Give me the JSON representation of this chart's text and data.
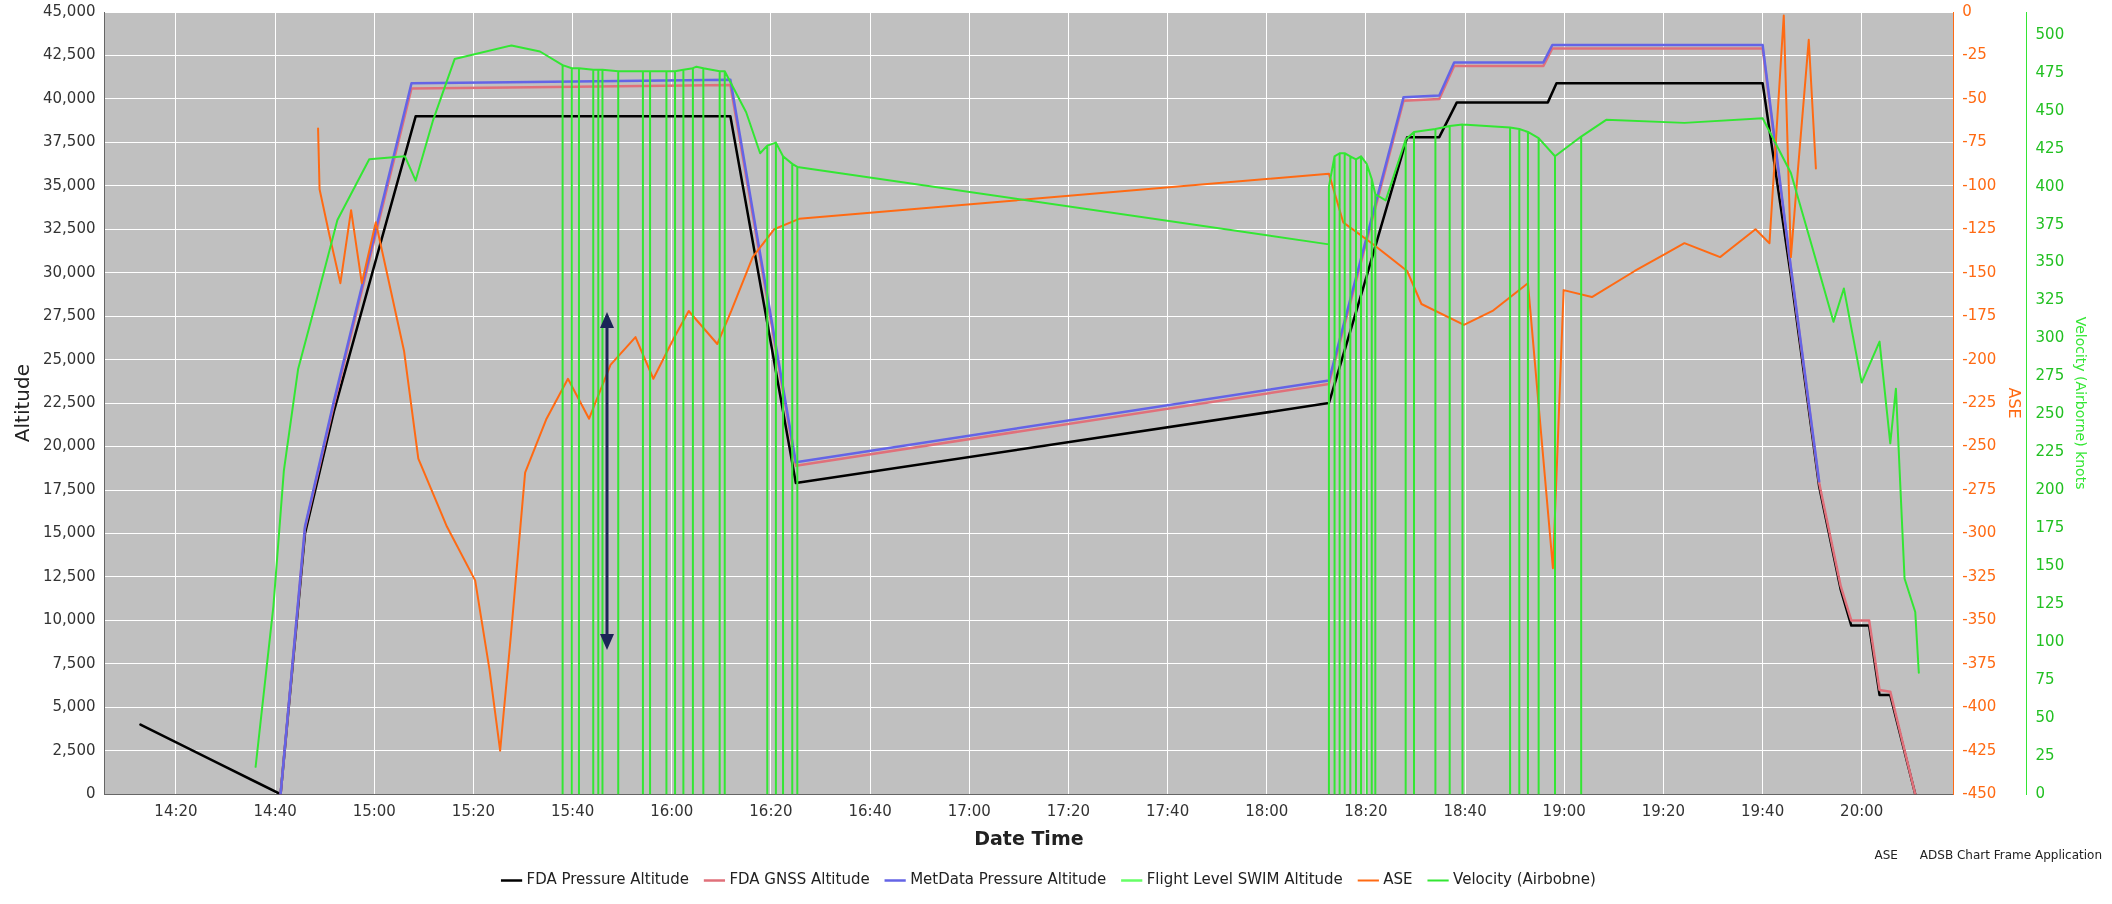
{
  "chart_data": {
    "type": "line",
    "xlabel": "Date Time",
    "ylabel": "Altitude",
    "y2label": "ASE",
    "y3label": "Velocity (Airborne) knots",
    "xlim": [
      14.093,
      20.308
    ],
    "xticks": [
      {
        "value": 14.3333,
        "label": "14:20"
      },
      {
        "value": 14.6667,
        "label": "14:40"
      },
      {
        "value": 15,
        "label": "15:00"
      },
      {
        "value": 15.3333,
        "label": "15:20"
      },
      {
        "value": 15.6667,
        "label": "15:40"
      },
      {
        "value": 16,
        "label": "16:00"
      },
      {
        "value": 16.3333,
        "label": "16:20"
      },
      {
        "value": 16.6667,
        "label": "16:40"
      },
      {
        "value": 17,
        "label": "17:00"
      },
      {
        "value": 17.3333,
        "label": "17:20"
      },
      {
        "value": 17.6667,
        "label": "17:40"
      },
      {
        "value": 18,
        "label": "18:00"
      },
      {
        "value": 18.3333,
        "label": "18:20"
      },
      {
        "value": 18.6667,
        "label": "18:40"
      },
      {
        "value": 19,
        "label": "19:00"
      },
      {
        "value": 19.3333,
        "label": "19:20"
      },
      {
        "value": 19.6667,
        "label": "19:40"
      },
      {
        "value": 20,
        "label": "20:00"
      }
    ],
    "ylim": [
      0,
      45000
    ],
    "yticks": [
      0,
      {
        "value": 2500,
        "label": "2,500"
      },
      {
        "value": 5000,
        "label": "5,000"
      },
      {
        "value": 7500,
        "label": "7,500"
      },
      {
        "value": 10000,
        "label": "10,000"
      },
      {
        "value": 12500,
        "label": "12,500"
      },
      {
        "value": 15000,
        "label": "15,000"
      },
      {
        "value": 17500,
        "label": "17,500"
      },
      {
        "value": 20000,
        "label": "20,000"
      },
      {
        "value": 22500,
        "label": "22,500"
      },
      {
        "value": 25000,
        "label": "25,000"
      },
      {
        "value": 27500,
        "label": "27,500"
      },
      {
        "value": 30000,
        "label": "30,000"
      },
      {
        "value": 32500,
        "label": "32,500"
      },
      {
        "value": 35000,
        "label": "35,000"
      },
      {
        "value": 37500,
        "label": "37,500"
      },
      {
        "value": 40000,
        "label": "40,000"
      },
      {
        "value": 42500,
        "label": "42,500"
      },
      {
        "value": 45000,
        "label": "45,000"
      }
    ],
    "y2lim": [
      -450,
      0
    ],
    "y2ticks": [
      -450,
      -425,
      -400,
      -375,
      -350,
      -325,
      -300,
      -275,
      -250,
      -225,
      -200,
      -175,
      -150,
      -125,
      -100,
      -75,
      -50,
      -25,
      0
    ],
    "y3lim": [
      0,
      515
    ],
    "y3ticks": [
      0,
      25,
      50,
      75,
      100,
      125,
      150,
      175,
      200,
      225,
      250,
      275,
      300,
      325,
      350,
      375,
      400,
      425,
      450,
      475,
      500
    ],
    "grid": true,
    "legend": "bottom",
    "marker": "none",
    "annotations": [
      "ASE",
      "ADSB Chart Frame Application"
    ],
    "series": [
      {
        "name": "FDA Pressure Altitude",
        "color": "#000000",
        "x": [
          14.214,
          14.685,
          14.767,
          14.864,
          15.139,
          16.197,
          16.417,
          18.209,
          18.329,
          18.472,
          18.58,
          18.639,
          18.945,
          18.974,
          19.667,
          19.762,
          19.857,
          19.929,
          19.965,
          20.025,
          20.06,
          20.096,
          20.18
        ],
        "values": [
          4000,
          0,
          15000,
          22000,
          39000,
          39000,
          17900,
          22500,
          29400,
          37800,
          37800,
          39800,
          39800,
          40900,
          40900,
          29800,
          17700,
          11800,
          9700,
          9700,
          5700,
          5700,
          0
        ]
      },
      {
        "name": "FDA GNSS Altitude",
        "color": "#e0707a",
        "x": [
          14.685,
          14.767,
          14.864,
          15.125,
          16.197,
          16.417,
          18.209,
          18.46,
          18.58,
          18.63,
          18.93,
          18.96,
          19.667,
          19.762,
          19.857,
          19.929,
          19.965,
          20.025,
          20.06,
          20.096,
          20.18
        ],
        "values": [
          0,
          15300,
          22400,
          40600,
          40800,
          18900,
          23600,
          39900,
          40000,
          41900,
          41900,
          42900,
          42900,
          30200,
          17900,
          12000,
          10000,
          10000,
          6000,
          5900,
          0
        ]
      },
      {
        "name": "MetData Pressure Altitude",
        "color": "#6464e6",
        "x": [
          14.685,
          14.767,
          14.864,
          15.125,
          16.197,
          16.417,
          18.209,
          18.46,
          18.58,
          18.63,
          18.93,
          18.96,
          19.667,
          19.762,
          19.857
        ],
        "values": [
          0,
          15400,
          22600,
          40900,
          41100,
          19100,
          23800,
          40100,
          40200,
          42100,
          42100,
          43100,
          43100,
          30300,
          18000
        ]
      },
      {
        "name": "Flight Level SWIM Altitude",
        "color": "#66ff66"
      },
      {
        "name": "ASE",
        "color": "#ff6a13",
        "axis": "y2",
        "x": [
          14.811,
          14.816,
          14.85,
          14.886,
          14.922,
          14.958,
          15.005,
          15.041,
          15.1,
          15.148,
          15.244,
          15.339,
          15.387,
          15.423,
          15.459,
          15.507,
          15.579,
          15.651,
          15.722,
          15.794,
          15.878,
          15.938,
          16.009,
          16.057,
          16.153,
          16.2,
          16.272,
          16.344,
          16.428,
          18.209,
          18.257,
          18.353,
          18.472,
          18.52,
          18.663,
          18.759,
          18.878,
          18.962,
          18.998,
          19.093,
          19.237,
          19.404,
          19.524,
          19.643,
          19.69,
          19.738,
          19.762,
          19.786,
          19.822,
          19.846
        ],
        "values": [
          -67,
          -102,
          -129,
          -156,
          -114,
          -156,
          -121,
          -149,
          -195,
          -257,
          -296,
          -327,
          -378,
          -425,
          -359,
          -265,
          -234,
          -211,
          -234,
          -203,
          -187,
          -211,
          -187,
          -172,
          -191,
          -172,
          -141,
          -125,
          -119,
          -93,
          -121,
          -133,
          -149,
          -168,
          -180,
          -172,
          -156,
          -320,
          -160,
          -164,
          -149,
          -133,
          -141,
          -125,
          -133,
          -2,
          -141,
          -90,
          -16,
          -90
        ]
      },
      {
        "name": "Velocity (Airbobne)",
        "color": "#33e633",
        "axis": "y3",
        "x": [
          14.601,
          14.661,
          14.696,
          14.744,
          14.804,
          14.876,
          14.983,
          15.103,
          15.139,
          15.198,
          15.27,
          15.461,
          15.557,
          15.633,
          15.633,
          15.633,
          15.664,
          15.664,
          15.664,
          15.688,
          15.688,
          15.688,
          15.736,
          15.736,
          15.736,
          15.753,
          15.753,
          15.753,
          15.767,
          15.767,
          15.767,
          15.82,
          15.82,
          15.82,
          15.903,
          15.903,
          15.903,
          15.927,
          15.927,
          15.927,
          15.982,
          15.982,
          15.982,
          16.011,
          16.011,
          16.011,
          16.039,
          16.039,
          16.039,
          16.071,
          16.071,
          16.071,
          16.083,
          16.106,
          16.106,
          16.106,
          16.161,
          16.161,
          16.161,
          16.178,
          16.178,
          16.178,
          16.25,
          16.297,
          16.321,
          16.321,
          16.321,
          16.35,
          16.35,
          16.35,
          16.374,
          16.374,
          16.374,
          16.405,
          16.405,
          16.405,
          16.422,
          16.422,
          16.422,
          18.209,
          18.209,
          18.209,
          18.228,
          18.228,
          18.228,
          18.245,
          18.245,
          18.245,
          18.262,
          18.262,
          18.262,
          18.281,
          18.281,
          18.281,
          18.3,
          18.3,
          18.3,
          18.317,
          18.317,
          18.317,
          18.336,
          18.336,
          18.336,
          18.353,
          18.353,
          18.353,
          18.365,
          18.365,
          18.365,
          18.4,
          18.467,
          18.467,
          18.467,
          18.495,
          18.495,
          18.495,
          18.567,
          18.567,
          18.567,
          18.615,
          18.615,
          18.615,
          18.658,
          18.658,
          18.658,
          18.818,
          18.818,
          18.818,
          18.849,
          18.849,
          18.849,
          18.878,
          18.878,
          18.878,
          18.914,
          18.914,
          18.914,
          18.969,
          18.969,
          18.969,
          19.057,
          19.057,
          19.057,
          19.141,
          19.404,
          19.667,
          19.762,
          19.834,
          19.905,
          19.94,
          20.0,
          20.06,
          20.096,
          20.115,
          20.144,
          20.18,
          20.192
        ],
        "values": [
          18,
          124,
          213,
          280,
          324,
          378,
          418,
          420,
          404,
          444,
          484,
          493,
          489,
          480,
          0,
          480,
          478,
          0,
          478,
          478,
          0,
          478,
          477,
          0,
          477,
          477,
          0,
          477,
          477,
          0,
          477,
          476,
          0,
          476,
          476,
          0,
          476,
          476,
          0,
          476,
          476,
          0,
          476,
          476,
          0,
          476,
          477,
          0,
          477,
          478,
          0,
          478,
          479,
          478,
          0,
          478,
          476,
          0,
          476,
          476,
          0,
          476,
          449,
          422,
          427,
          0,
          427,
          429,
          0,
          429,
          420,
          0,
          420,
          415,
          0,
          415,
          413,
          0,
          413,
          362,
          0,
          400,
          420,
          0,
          420,
          422,
          0,
          422,
          422,
          0,
          422,
          420,
          0,
          420,
          418,
          0,
          418,
          420,
          0,
          420,
          415,
          0,
          415,
          405,
          0,
          405,
          395,
          0,
          395,
          391,
          431,
          0,
          431,
          436,
          0,
          436,
          438,
          0,
          438,
          440,
          0,
          440,
          441,
          0,
          441,
          439,
          0,
          439,
          438,
          0,
          438,
          436,
          0,
          436,
          432,
          0,
          432,
          420,
          0,
          420,
          433,
          0,
          433,
          444,
          442,
          445,
          409,
          360,
          311,
          333,
          271,
          298,
          231,
          267,
          142,
          120,
          80
        ]
      }
    ]
  }
}
